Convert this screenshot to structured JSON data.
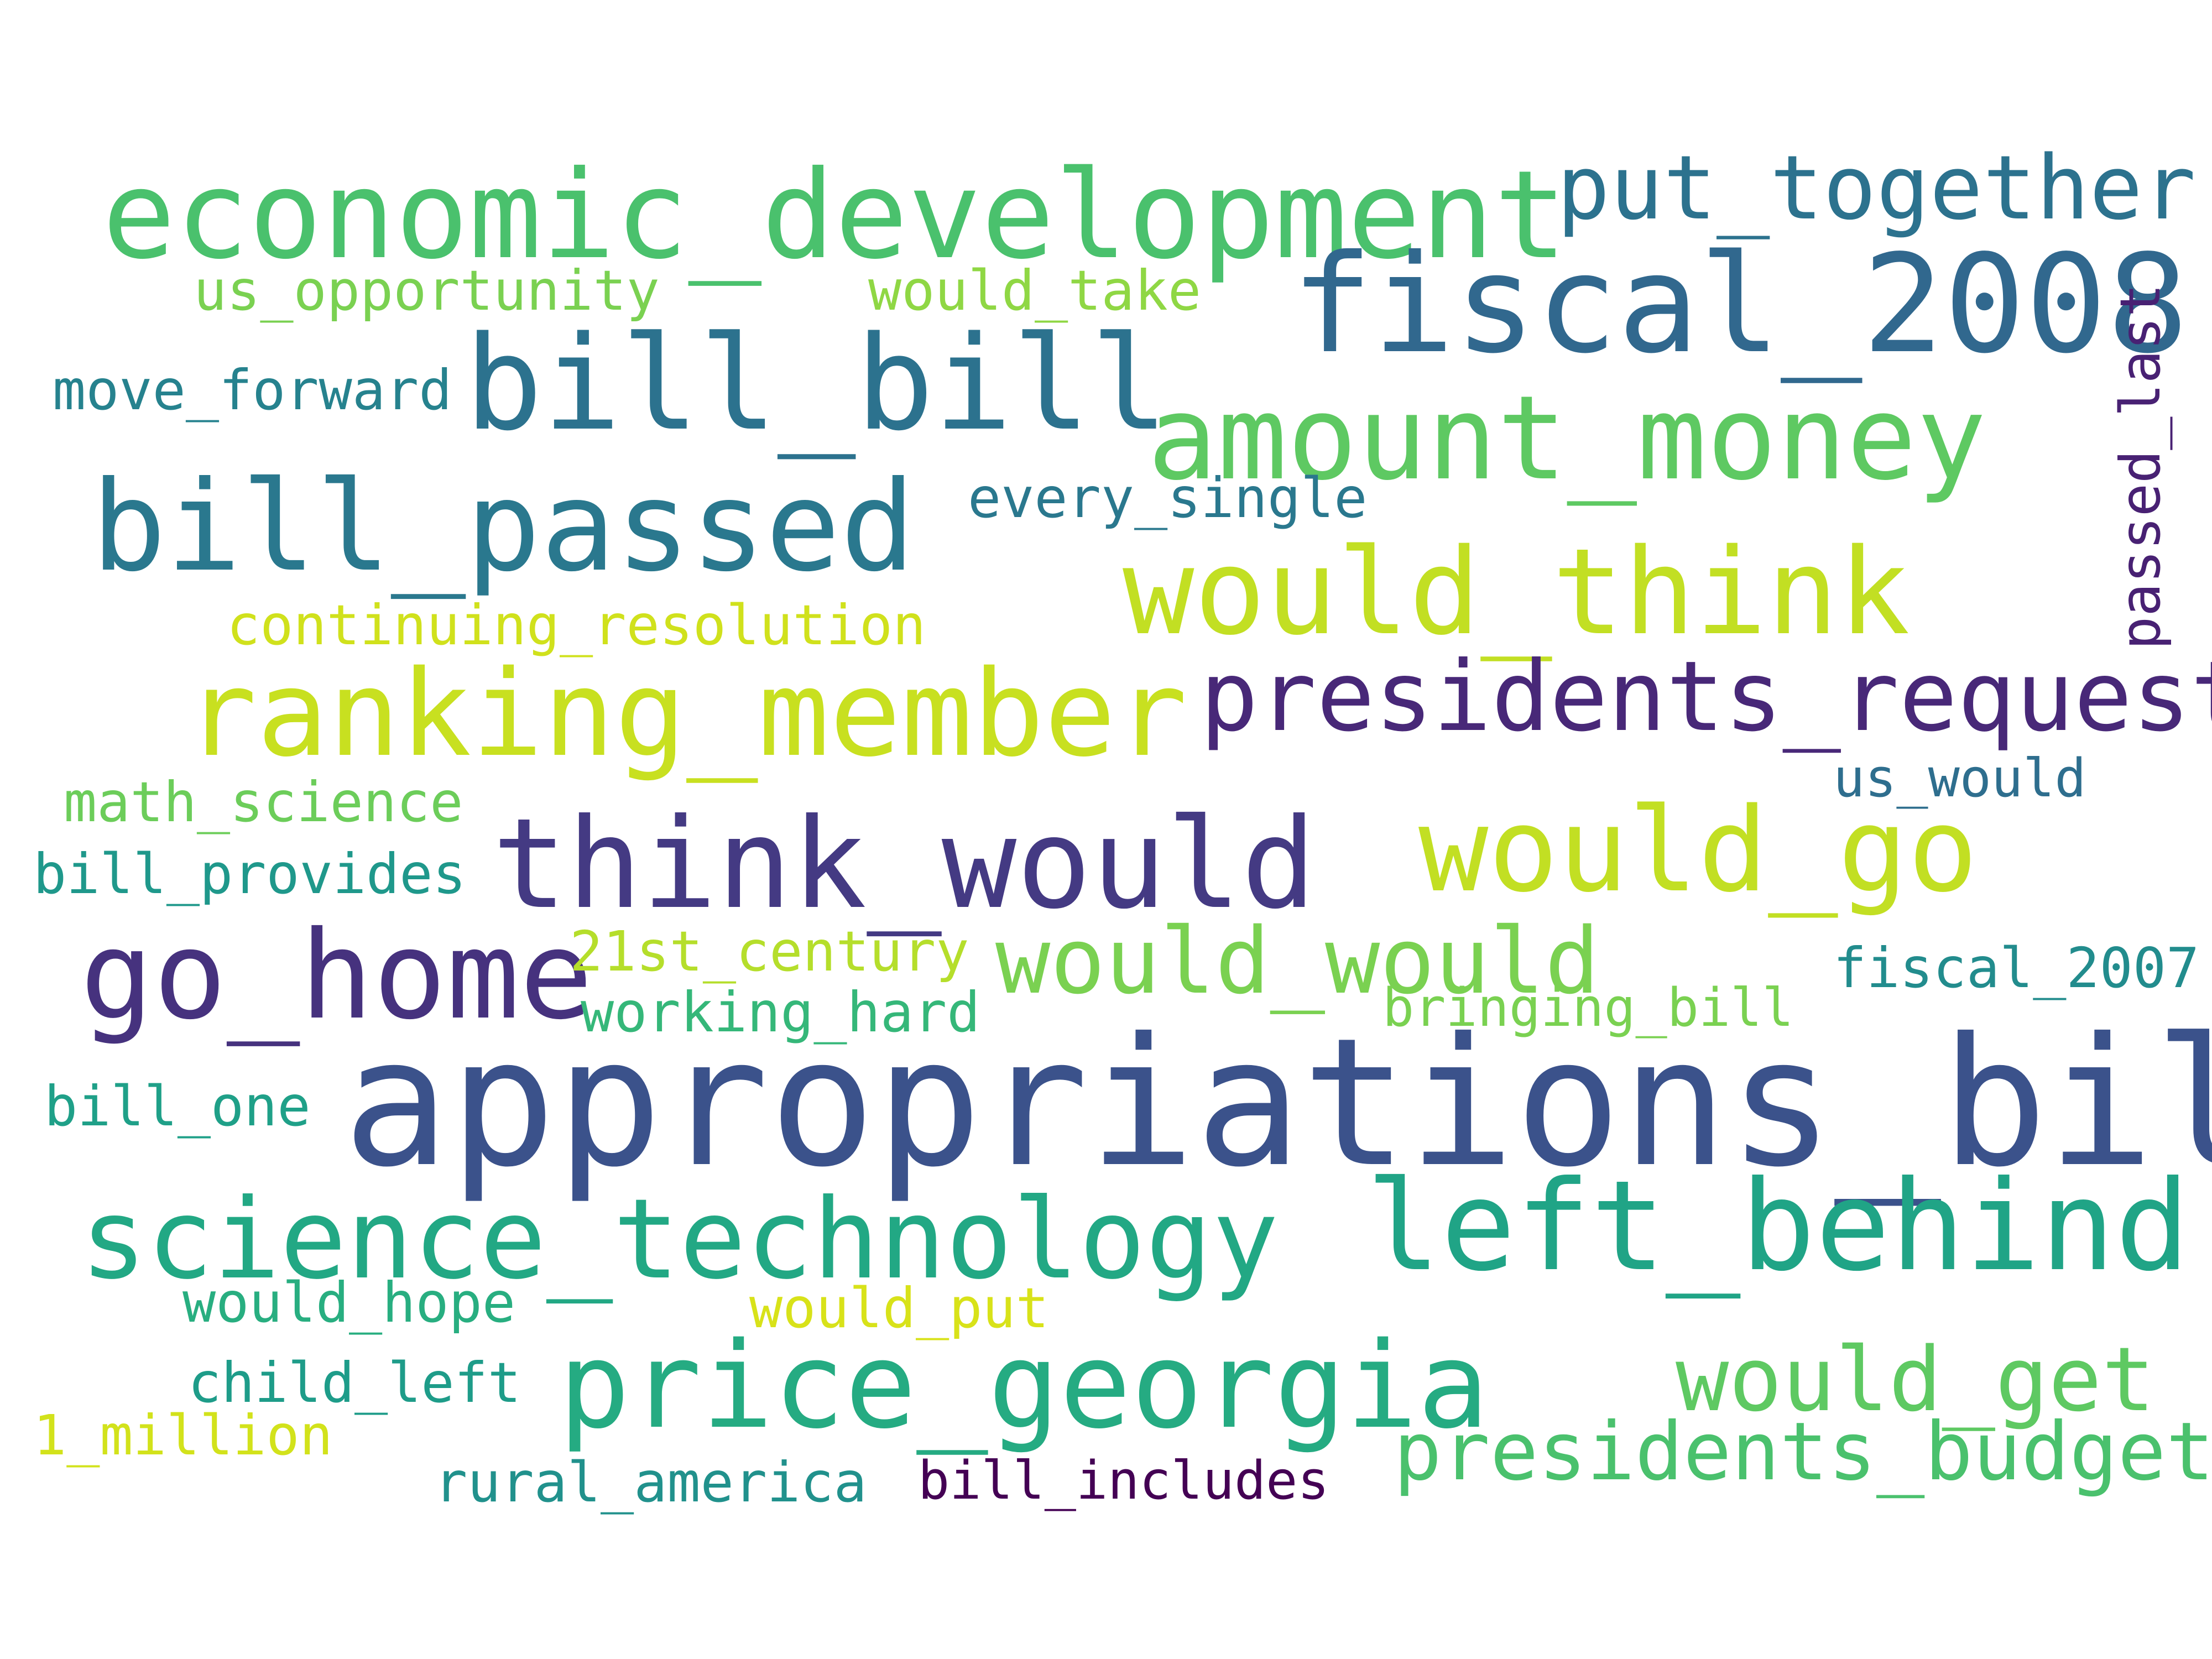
{
  "words": [
    {
      "text": "appropriations_bill",
      "color": "#3b528b"
    },
    {
      "text": "economic_development",
      "color": "#4ac16d"
    },
    {
      "text": "fiscal_2008",
      "color": "#31688e"
    },
    {
      "text": "bill_bill",
      "color": "#2c728e"
    },
    {
      "text": "bill_passed",
      "color": "#2a788e"
    },
    {
      "text": "amount_money",
      "color": "#5ec962"
    },
    {
      "text": "would_think",
      "color": "#c2df23"
    },
    {
      "text": "ranking_member",
      "color": "#c8e020"
    },
    {
      "text": "presidents_request",
      "color": "#482878"
    },
    {
      "text": "think_would",
      "color": "#443a83"
    },
    {
      "text": "would_go",
      "color": "#c2df23"
    },
    {
      "text": "go_home",
      "color": "#46327e"
    },
    {
      "text": "science_technology",
      "color": "#22a884"
    },
    {
      "text": "left_behind",
      "color": "#20a486"
    },
    {
      "text": "price_georgia",
      "color": "#25ab82"
    },
    {
      "text": "put_together",
      "color": "#2c728e"
    },
    {
      "text": "would_would",
      "color": "#7ad151"
    },
    {
      "text": "would_get",
      "color": "#5ec962"
    },
    {
      "text": "presidents_budget",
      "color": "#4ac16d"
    },
    {
      "text": "passed_last",
      "color": "#482173"
    },
    {
      "text": "us_opportunity",
      "color": "#7ad151"
    },
    {
      "text": "would_take",
      "color": "#8fd744"
    },
    {
      "text": "move_forward",
      "color": "#26828e"
    },
    {
      "text": "every_single",
      "color": "#2a788e"
    },
    {
      "text": "continuing_resolution",
      "color": "#d0e11c"
    },
    {
      "text": "math_science",
      "color": "#6ccd5a"
    },
    {
      "text": "us_would",
      "color": "#2e6e8e"
    },
    {
      "text": "bill_provides",
      "color": "#1f988b"
    },
    {
      "text": "21st_century",
      "color": "#b5de2b"
    },
    {
      "text": "fiscal_2007",
      "color": "#228c8d"
    },
    {
      "text": "working_hard",
      "color": "#35b779"
    },
    {
      "text": "bringing_bill",
      "color": "#7ad151"
    },
    {
      "text": "bill_one",
      "color": "#1fa088"
    },
    {
      "text": "would_hope",
      "color": "#28ae80"
    },
    {
      "text": "would_put",
      "color": "#d8e219"
    },
    {
      "text": "child_left",
      "color": "#1e9c89"
    },
    {
      "text": "1_million",
      "color": "#d2e21b"
    },
    {
      "text": "rural_america",
      "color": "#21918c"
    },
    {
      "text": "bill_includes",
      "color": "#440154"
    }
  ]
}
